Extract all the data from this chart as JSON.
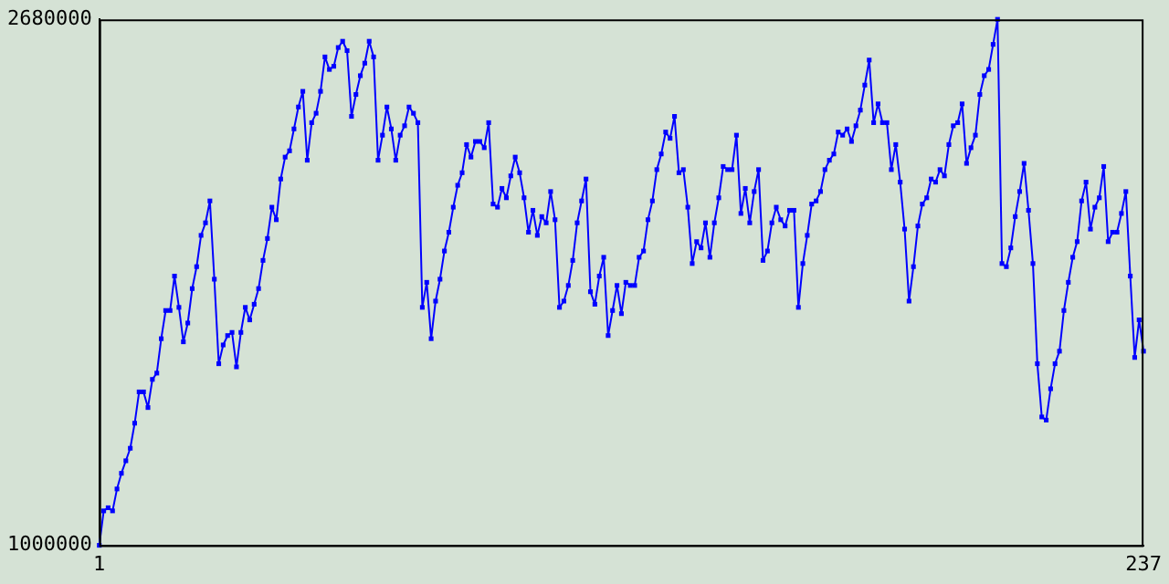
{
  "chart_data": {
    "type": "line",
    "marker": "square",
    "line_style": "solid",
    "legend": false,
    "grid": false,
    "xlim": [
      1,
      237
    ],
    "xticks": [
      1,
      237
    ],
    "ylim": [
      1000000,
      2680000
    ],
    "yticks": [
      1000000,
      2680000
    ],
    "series": [
      {
        "color": "#0000ff",
        "x": [
          1,
          2,
          3,
          4,
          5,
          6,
          7,
          8,
          9,
          10,
          11,
          12,
          13,
          14,
          15,
          16,
          17,
          18,
          19,
          20,
          21,
          22,
          23,
          24,
          25,
          26,
          27,
          28,
          29,
          30,
          31,
          32,
          33,
          34,
          35,
          36,
          37,
          38,
          39,
          40,
          41,
          42,
          43,
          44,
          45,
          46,
          47,
          48,
          49,
          50,
          51,
          52,
          53,
          54,
          55,
          56,
          57,
          58,
          59,
          60,
          61,
          62,
          63,
          64,
          65,
          66,
          67,
          68,
          69,
          70,
          71,
          72,
          73,
          74,
          75,
          76,
          77,
          78,
          79,
          80,
          81,
          82,
          83,
          84,
          85,
          86,
          87,
          88,
          89,
          90,
          91,
          92,
          93,
          94,
          95,
          96,
          97,
          98,
          99,
          100,
          101,
          102,
          103,
          104,
          105,
          106,
          107,
          108,
          109,
          110,
          111,
          112,
          113,
          114,
          115,
          116,
          117,
          118,
          119,
          120,
          121,
          122,
          123,
          124,
          125,
          126,
          127,
          128,
          129,
          130,
          131,
          132,
          133,
          134,
          135,
          136,
          137,
          138,
          139,
          140,
          141,
          142,
          143,
          144,
          145,
          146,
          147,
          148,
          149,
          150,
          151,
          152,
          153,
          154,
          155,
          156,
          157,
          158,
          159,
          160,
          161,
          162,
          163,
          164,
          165,
          166,
          167,
          168,
          169,
          170,
          171,
          172,
          173,
          174,
          175,
          176,
          177,
          178,
          179,
          180,
          181,
          182,
          183,
          184,
          185,
          186,
          187,
          188,
          189,
          190,
          191,
          192,
          193,
          194,
          195,
          196,
          197,
          198,
          199,
          200,
          201,
          202,
          203,
          204,
          205,
          206,
          207,
          208,
          209,
          210,
          211,
          212,
          213,
          214,
          215,
          216,
          217,
          218,
          219,
          220,
          221,
          222,
          223,
          224,
          225,
          226,
          227,
          228,
          229,
          230,
          231,
          232,
          233,
          234,
          235,
          236,
          237
        ],
        "values": [
          1000000,
          1110000,
          1120000,
          1110000,
          1180000,
          1230000,
          1270000,
          1310000,
          1390000,
          1490000,
          1490000,
          1440000,
          1530000,
          1550000,
          1660000,
          1750000,
          1750000,
          1860000,
          1760000,
          1650000,
          1710000,
          1820000,
          1890000,
          1990000,
          2030000,
          2100000,
          1850000,
          1580000,
          1640000,
          1670000,
          1680000,
          1570000,
          1680000,
          1760000,
          1720000,
          1770000,
          1820000,
          1910000,
          1980000,
          2080000,
          2040000,
          2170000,
          2240000,
          2260000,
          2330000,
          2400000,
          2450000,
          2230000,
          2350000,
          2380000,
          2450000,
          2560000,
          2520000,
          2530000,
          2590000,
          2610000,
          2580000,
          2370000,
          2440000,
          2500000,
          2540000,
          2610000,
          2560000,
          2230000,
          2310000,
          2400000,
          2330000,
          2230000,
          2310000,
          2340000,
          2400000,
          2380000,
          2350000,
          1760000,
          1840000,
          1660000,
          1780000,
          1850000,
          1940000,
          2000000,
          2080000,
          2150000,
          2190000,
          2280000,
          2240000,
          2290000,
          2290000,
          2270000,
          2350000,
          2090000,
          2080000,
          2140000,
          2110000,
          2180000,
          2240000,
          2190000,
          2110000,
          2000000,
          2070000,
          1990000,
          2050000,
          2030000,
          2130000,
          2040000,
          1760000,
          1780000,
          1830000,
          1910000,
          2030000,
          2100000,
          2170000,
          1810000,
          1770000,
          1860000,
          1920000,
          1670000,
          1750000,
          1830000,
          1740000,
          1840000,
          1830000,
          1830000,
          1920000,
          1940000,
          2040000,
          2100000,
          2200000,
          2250000,
          2320000,
          2300000,
          2370000,
          2190000,
          2200000,
          2080000,
          1900000,
          1970000,
          1950000,
          2030000,
          1920000,
          2030000,
          2110000,
          2210000,
          2200000,
          2200000,
          2310000,
          2060000,
          2140000,
          2030000,
          2130000,
          2200000,
          1910000,
          1940000,
          2030000,
          2080000,
          2040000,
          2020000,
          2070000,
          2070000,
          1760000,
          1900000,
          1990000,
          2090000,
          2100000,
          2130000,
          2200000,
          2230000,
          2250000,
          2320000,
          2310000,
          2330000,
          2290000,
          2340000,
          2390000,
          2470000,
          2550000,
          2350000,
          2410000,
          2350000,
          2350000,
          2200000,
          2280000,
          2160000,
          2010000,
          1780000,
          1890000,
          2020000,
          2090000,
          2110000,
          2170000,
          2160000,
          2200000,
          2180000,
          2280000,
          2340000,
          2350000,
          2410000,
          2220000,
          2270000,
          2310000,
          2440000,
          2500000,
          2520000,
          2600000,
          2680000,
          1900000,
          1890000,
          1950000,
          2050000,
          2130000,
          2220000,
          2070000,
          1900000,
          1580000,
          1410000,
          1400000,
          1500000,
          1580000,
          1620000,
          1750000,
          1840000,
          1920000,
          1970000,
          2100000,
          2160000,
          2010000,
          2080000,
          2110000,
          2210000,
          1970000,
          2000000,
          2000000,
          2060000,
          2130000,
          1860000,
          1600000,
          1720000,
          1620000
        ]
      }
    ]
  }
}
